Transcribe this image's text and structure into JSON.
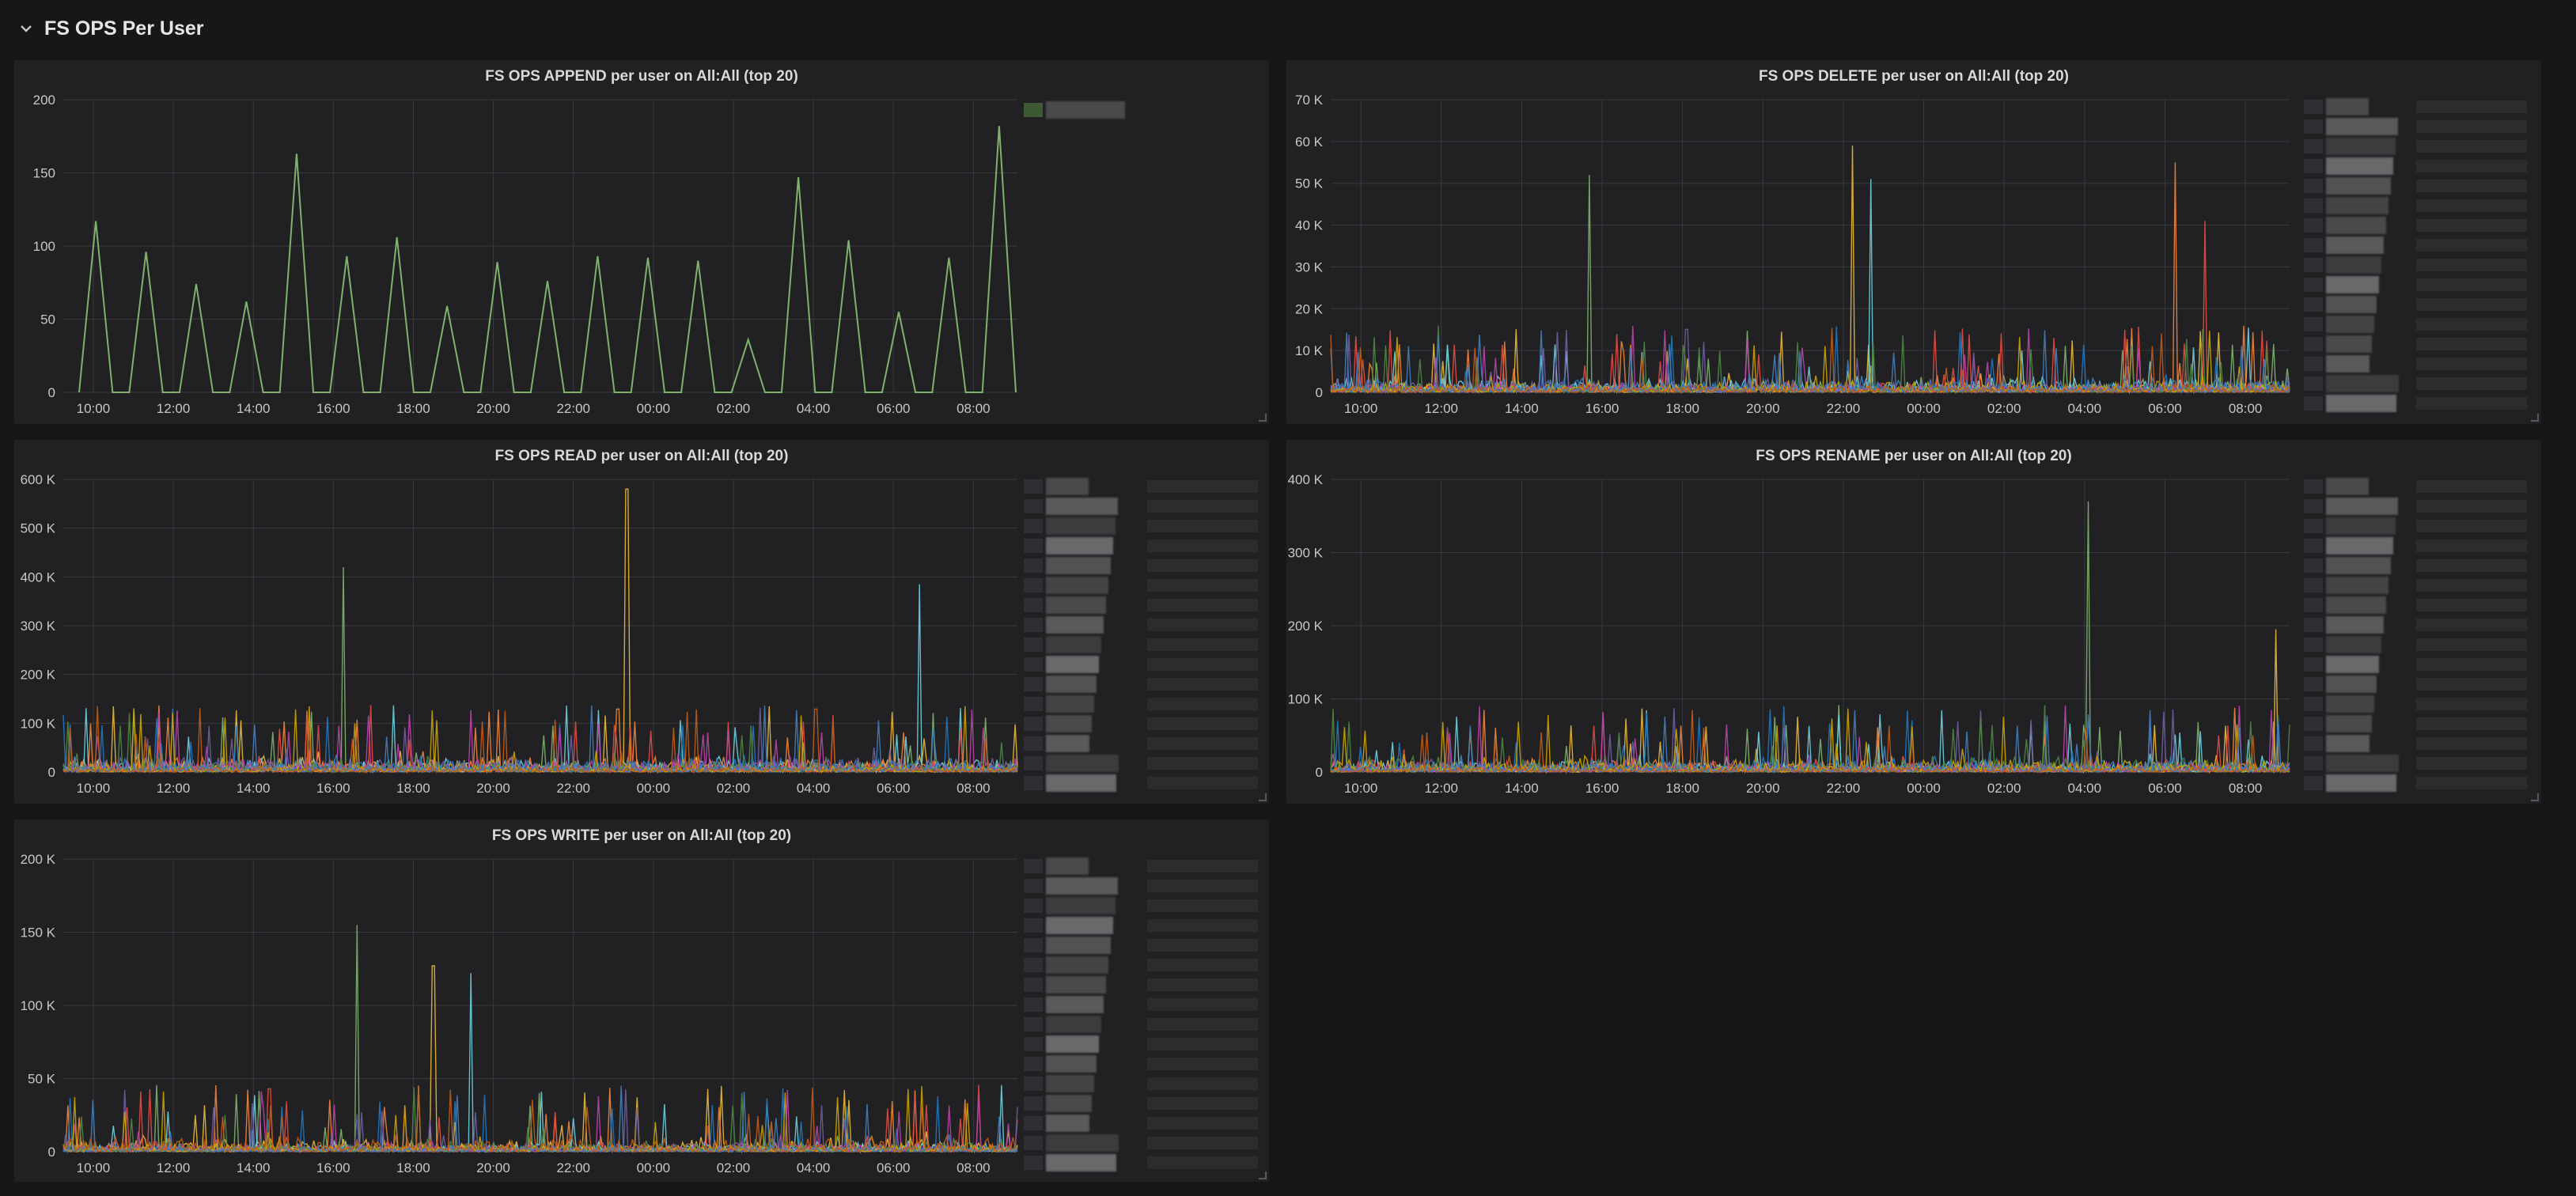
{
  "row": {
    "title": "FS OPS Per User",
    "chevron_icon": "chevron-down-icon"
  },
  "colors": {
    "background": "#161719",
    "panel": "#212124",
    "grid": "#3a3a3e",
    "text": "#d8d9da",
    "series_palette": [
      "#7eb26d",
      "#eab839",
      "#6ed0e0",
      "#ef843c",
      "#e24d42",
      "#1f78c1",
      "#ba43a9",
      "#705da0",
      "#508642",
      "#cca300",
      "#447ebc",
      "#c15c17",
      "#890f02",
      "#0a437c",
      "#6d1f62",
      "#584477",
      "#b7dbab",
      "#f4d598",
      "#70dbed",
      "#f9ba8f"
    ]
  },
  "legend_note": "Legend entry names are pixelated/obscured in the screenshot",
  "chart_data": [
    {
      "type": "line",
      "title": "FS OPS APPEND per user on All:All (top 20)",
      "xlabel": "",
      "ylabel": "",
      "x_ticks": [
        "10:00",
        "12:00",
        "14:00",
        "16:00",
        "18:00",
        "20:00",
        "22:00",
        "00:00",
        "02:00",
        "04:00",
        "06:00",
        "08:00"
      ],
      "y_ticks": [
        "0",
        "50",
        "100",
        "150",
        "200"
      ],
      "ylim": [
        0,
        200
      ],
      "grid": true,
      "legend_placement": "right",
      "series_count": 1,
      "series": [
        {
          "values": [
            0,
            117,
            0,
            0,
            96,
            0,
            0,
            74,
            0,
            0,
            62,
            0,
            0,
            163,
            0,
            0,
            93,
            0,
            0,
            106,
            0,
            0,
            59,
            0,
            0,
            89,
            0,
            0,
            76,
            0,
            0,
            93,
            0,
            0,
            92,
            0,
            0,
            90,
            0,
            0,
            36,
            0,
            0,
            147,
            0,
            0,
            104,
            0,
            0,
            55,
            0,
            0,
            92,
            0,
            0,
            182,
            0
          ]
        }
      ]
    },
    {
      "type": "line",
      "title": "FS OPS DELETE per user on All:All (top 20)",
      "xlabel": "",
      "ylabel": "",
      "x_ticks": [
        "10:00",
        "12:00",
        "14:00",
        "16:00",
        "18:00",
        "20:00",
        "22:00",
        "00:00",
        "02:00",
        "04:00",
        "06:00",
        "08:00"
      ],
      "y_ticks": [
        "0",
        "10 K",
        "20 K",
        "30 K",
        "40 K",
        "50 K",
        "60 K",
        "70 K"
      ],
      "ylim": [
        0,
        70000
      ],
      "grid": true,
      "legend_placement": "right",
      "series_count": 20,
      "notable_peaks": [
        {
          "x": "15:40",
          "y": 52000
        },
        {
          "x": "22:15",
          "y": 59000
        },
        {
          "x": "22:40",
          "y": 51000
        },
        {
          "x": "06:15",
          "y": 55000
        },
        {
          "x": "07:00",
          "y": 41000
        }
      ]
    },
    {
      "type": "line",
      "title": "FS OPS READ per user on All:All (top 20)",
      "xlabel": "",
      "ylabel": "",
      "x_ticks": [
        "10:00",
        "12:00",
        "14:00",
        "16:00",
        "18:00",
        "20:00",
        "22:00",
        "00:00",
        "02:00",
        "04:00",
        "06:00",
        "08:00"
      ],
      "y_ticks": [
        "0",
        "100 K",
        "200 K",
        "300 K",
        "400 K",
        "500 K",
        "600 K"
      ],
      "ylim": [
        0,
        600000
      ],
      "grid": true,
      "legend_placement": "right",
      "series_count": 20,
      "notable_peaks": [
        {
          "x": "16:15",
          "y": 420000
        },
        {
          "x": "23:20",
          "y": 580000
        },
        {
          "x": "06:40",
          "y": 385000
        }
      ]
    },
    {
      "type": "line",
      "title": "FS OPS RENAME per user on All:All (top 20)",
      "xlabel": "",
      "ylabel": "",
      "x_ticks": [
        "10:00",
        "12:00",
        "14:00",
        "16:00",
        "18:00",
        "20:00",
        "22:00",
        "00:00",
        "02:00",
        "04:00",
        "06:00",
        "08:00"
      ],
      "y_ticks": [
        "0",
        "100 K",
        "200 K",
        "300 K",
        "400 K"
      ],
      "ylim": [
        0,
        400000
      ],
      "grid": true,
      "legend_placement": "right",
      "series_count": 20,
      "notable_peaks": [
        {
          "x": "04:05",
          "y": 370000
        },
        {
          "x": "08:45",
          "y": 195000
        }
      ]
    },
    {
      "type": "line",
      "title": "FS OPS WRITE per user on All:All (top 20)",
      "xlabel": "",
      "ylabel": "",
      "x_ticks": [
        "10:00",
        "12:00",
        "14:00",
        "16:00",
        "18:00",
        "20:00",
        "22:00",
        "00:00",
        "02:00",
        "04:00",
        "06:00",
        "08:00"
      ],
      "y_ticks": [
        "0",
        "50 K",
        "100 K",
        "150 K",
        "200 K"
      ],
      "ylim": [
        0,
        200000
      ],
      "grid": true,
      "legend_placement": "right",
      "series_count": 20,
      "notable_peaks": [
        {
          "x": "16:35",
          "y": 155000
        },
        {
          "x": "18:30",
          "y": 127000
        },
        {
          "x": "19:25",
          "y": 122000
        }
      ]
    }
  ]
}
